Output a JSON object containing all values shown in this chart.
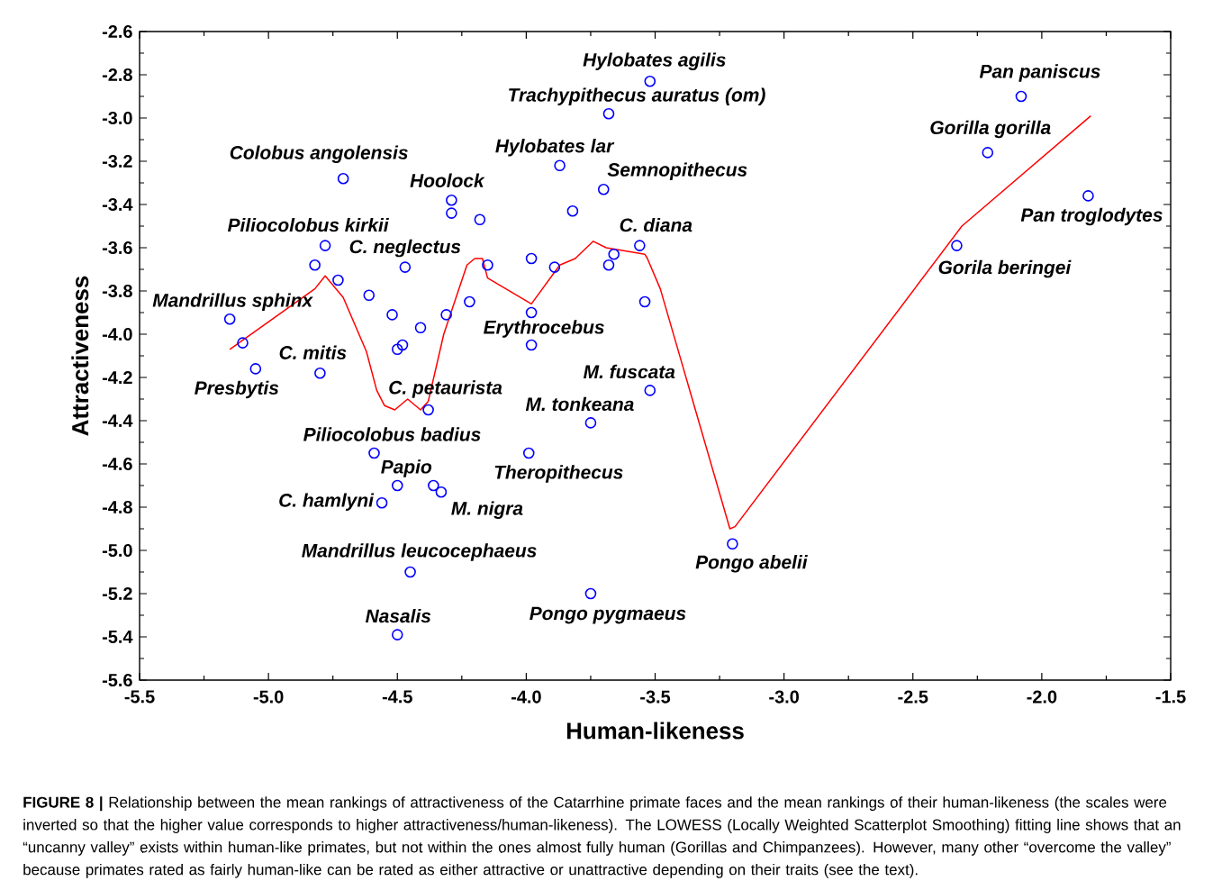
{
  "chart_data": {
    "type": "scatter",
    "xlabel": "Human-likeness",
    "ylabel": "Attractiveness",
    "xlim": [
      -5.5,
      -1.5
    ],
    "ylim": [
      -5.6,
      -2.6
    ],
    "xticks": [
      -5.5,
      {
        "value": -5,
        "label": "-5.0"
      },
      -4.5,
      {
        "value": -4,
        "label": "-4.0"
      },
      -3.5,
      {
        "value": -3,
        "label": "-3.0"
      },
      -2.5,
      {
        "value": -2,
        "label": "-2.0"
      },
      -1.5
    ],
    "yticks": [
      -2.6,
      -2.8,
      {
        "value": -3,
        "label": "-3.0"
      },
      -3.2,
      -3.4,
      -3.6,
      -3.8,
      {
        "value": -4,
        "label": "-4.0"
      },
      -4.2,
      -4.4,
      -4.6,
      -4.8,
      {
        "value": -5,
        "label": "-5.0"
      },
      -5.2,
      -5.4,
      -5.6
    ],
    "series": [
      {
        "color": "#0000ff",
        "marker": "circle",
        "x": [
          -3.52,
          -3.68,
          -2.08,
          -2.21,
          -1.82,
          -2.33,
          -4.71,
          -3.87,
          -3.7,
          -4.29,
          -4.29,
          -4.18,
          -3.82,
          -4.78,
          -4.82,
          -4.73,
          -4.47,
          -4.15,
          -3.98,
          -3.89,
          -3.68,
          -3.66,
          -3.56,
          -3.54,
          -4.61,
          -4.52,
          -4.41,
          -4.31,
          -4.22,
          -3.98,
          -3.98,
          -5.15,
          -5.1,
          -5.05,
          -4.8,
          -4.48,
          -4.5,
          -4.38,
          -3.52,
          -3.75,
          -4.59,
          -3.99,
          -4.5,
          -4.36,
          -4.33,
          -4.56,
          -4.45,
          -3.75,
          -4.5,
          -3.2
        ],
        "values": [
          -2.83,
          -2.98,
          -2.9,
          -3.16,
          -3.36,
          -3.59,
          -3.28,
          -3.22,
          -3.33,
          -3.38,
          -3.44,
          -3.47,
          -3.43,
          -3.59,
          -3.68,
          -3.75,
          -3.69,
          -3.68,
          -3.65,
          -3.69,
          -3.68,
          -3.63,
          -3.59,
          -3.85,
          -3.82,
          -3.91,
          -3.97,
          -3.91,
          -3.85,
          -3.9,
          -4.05,
          -3.93,
          -4.04,
          -4.16,
          -4.18,
          -4.05,
          -4.07,
          -4.35,
          -4.26,
          -4.41,
          -4.55,
          -4.55,
          -4.7,
          -4.7,
          -4.73,
          -4.78,
          -5.1,
          -5.2,
          -5.39,
          -4.97
        ]
      },
      {
        "type": "line",
        "color": "#ff0000",
        "marker": "none",
        "x": [
          -5.15,
          -4.82,
          -4.78,
          -4.71,
          -4.62,
          -4.58,
          -4.55,
          -4.51,
          -4.46,
          -4.41,
          -4.38,
          -4.32,
          -4.23,
          -4.2,
          -4.17,
          -4.15,
          -3.98,
          -3.87,
          -3.81,
          -3.74,
          -3.69,
          -3.54,
          -3.53,
          -3.48,
          -3.21,
          -3.19,
          -2.31,
          -1.81
        ],
        "values": [
          -4.07,
          -3.79,
          -3.73,
          -3.83,
          -4.08,
          -4.26,
          -4.33,
          -4.35,
          -4.3,
          -4.35,
          -4.31,
          -4.0,
          -3.68,
          -3.65,
          -3.65,
          -3.74,
          -3.86,
          -3.68,
          -3.65,
          -3.57,
          -3.6,
          -3.63,
          -3.65,
          -3.79,
          -4.9,
          -4.89,
          -3.5,
          -2.99
        ]
      }
    ],
    "annotations": [
      {
        "text": "Hylobates agilis",
        "x": -3.52,
        "y": -2.83
      },
      {
        "text": "Trachypithecus auratus (om)",
        "x": -3.68,
        "y": -2.98
      },
      {
        "text": "Pan paniscus",
        "x": -2.08,
        "y": -2.9
      },
      {
        "text": "Gorilla gorilla",
        "x": -2.21,
        "y": -3.16
      },
      {
        "text": "Pan troglodytes",
        "x": -1.82,
        "y": -3.36
      },
      {
        "text": "Gorila beringei",
        "x": -2.33,
        "y": -3.59
      },
      {
        "text": "Colobus angolensis",
        "x": -4.71,
        "y": -3.28
      },
      {
        "text": "Hylobates lar",
        "x": -3.87,
        "y": -3.22
      },
      {
        "text": "Semnopithecus",
        "x": -3.7,
        "y": -3.33
      },
      {
        "text": "Hoolock",
        "x": -4.29,
        "y": -3.38
      },
      {
        "text": "Piliocolobus kirkii",
        "x": -4.78,
        "y": -3.59
      },
      {
        "text": "C. neglectus",
        "x": -4.47,
        "y": -3.69
      },
      {
        "text": "C. diana",
        "x": -3.56,
        "y": -3.59
      },
      {
        "text": "Mandrillus sphinx",
        "x": -5.15,
        "y": -3.93
      },
      {
        "text": "Erythrocebus",
        "x": -3.98,
        "y": -4.05
      },
      {
        "text": "C. mitis",
        "x": -4.8,
        "y": -4.18
      },
      {
        "text": "Presbytis",
        "x": -5.05,
        "y": -4.16
      },
      {
        "text": "C. petaurista",
        "x": -4.38,
        "y": -4.35
      },
      {
        "text": "M. fuscata",
        "x": -3.52,
        "y": -4.26
      },
      {
        "text": "M. tonkeana",
        "x": -3.75,
        "y": -4.41
      },
      {
        "text": "Piliocolobus badius",
        "x": -4.59,
        "y": -4.55
      },
      {
        "text": "Theropithecus",
        "x": -3.99,
        "y": -4.55
      },
      {
        "text": "Papio",
        "x": -4.5,
        "y": -4.7
      },
      {
        "text": "C. hamlyni",
        "x": -4.56,
        "y": -4.78
      },
      {
        "text": "M. nigra",
        "x": -4.33,
        "y": -4.73
      },
      {
        "text": "Mandrillus leucocephaeus",
        "x": -4.45,
        "y": -5.1
      },
      {
        "text": "Pongo abelii",
        "x": -3.2,
        "y": -4.97
      },
      {
        "text": "Nasalis",
        "x": -4.5,
        "y": -5.39
      },
      {
        "text": "Pongo pygmaeus",
        "x": -3.75,
        "y": -5.2
      },
      "**FIGURE 8 |** Relationship between the mean rankings of attractiveness of the Catarrhine primate faces and the mean rankings of their human-likeness (the scales were inverted so that the higher value corresponds to higher attractiveness/human-likeness). The LOWESS (Locally Weighted Scatterplot Smoothing) fitting line shows that an “uncanny valley” exists within human-like primates, but not within the ones almost fully human (Gorillas and Chimpanzees). However, many other “overcome the valley” because primates rated as fairly human-like can be rated as either attractive or unattractive depending on their traits (see the text)."
    ]
  }
}
